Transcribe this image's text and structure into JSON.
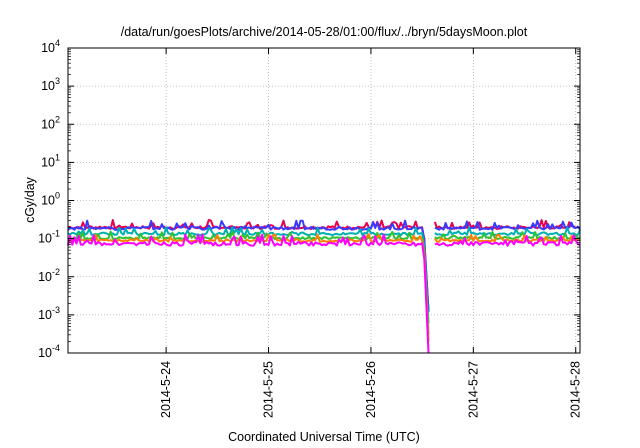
{
  "chart_data": {
    "type": "line",
    "title": "/data/run/goesPlots/archive/2014-05-28/01:00/flux/../bryn/5daysMoon.plot",
    "xlabel": "Coordinated Universal Time (UTC)",
    "ylabel": "cGy/day",
    "x_range": [
      "2014-05-23T01:00",
      "2014-05-28T01:00"
    ],
    "x_ticks": [
      "2014-5-24",
      "2014-5-25",
      "2014-5-26",
      "2014-5-27",
      "2014-5-28"
    ],
    "y_scale": "log",
    "ylim": [
      0.0001,
      10000
    ],
    "y_ticks": [
      {
        "base": "10",
        "exp": "-4",
        "value": 0.0001
      },
      {
        "base": "10",
        "exp": "-3",
        "value": 0.001
      },
      {
        "base": "10",
        "exp": "-2",
        "value": 0.01
      },
      {
        "base": "10",
        "exp": "-1",
        "value": 0.1
      },
      {
        "base": "10",
        "exp": "0",
        "value": 1
      },
      {
        "base": "10",
        "exp": "1",
        "value": 10
      },
      {
        "base": "10",
        "exp": "2",
        "value": 100
      },
      {
        "base": "10",
        "exp": "3",
        "value": 1000
      },
      {
        "base": "10",
        "exp": "4",
        "value": 10000
      }
    ],
    "grid": true,
    "legend": "none",
    "series": [
      {
        "color": "#e8004a",
        "baseline": 0.2,
        "amplitude": 0.35,
        "min_in_gap": 0.0013
      },
      {
        "color": "#3a3aff",
        "baseline": 0.19,
        "amplitude": 0.35,
        "min_in_gap": 0.0012
      },
      {
        "color": "#00b0b0",
        "baseline": 0.135,
        "amplitude": 0.3,
        "min_in_gap": 0.0006
      },
      {
        "color": "#30c030",
        "baseline": 0.105,
        "amplitude": 0.28,
        "min_in_gap": 0.0003
      },
      {
        "color": "#ff8000",
        "baseline": 0.09,
        "amplitude": 0.28,
        "min_in_gap": 0.0002
      },
      {
        "color": "#ff00ff",
        "baseline": 0.075,
        "amplitude": 0.45,
        "min_in_gap": 0.0001
      }
    ],
    "data_gap": {
      "drop_start": "2014-05-26T12:20",
      "drop_end": "2014-05-26T13:30",
      "gap_end": "2014-05-26T15:00"
    }
  }
}
